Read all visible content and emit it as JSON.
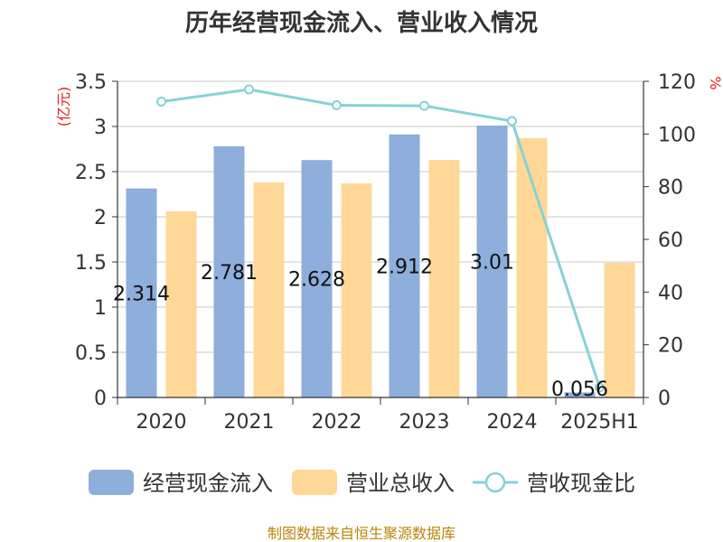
{
  "chart_data": {
    "type": "bar",
    "title": "历年经营现金流入、营业收入情况",
    "categories": [
      "2020",
      "2021",
      "2022",
      "2023",
      "2024",
      "2025H1"
    ],
    "series": [
      {
        "name": "经营现金流入",
        "type": "bar",
        "axis": "left",
        "color": "#8eaedb",
        "values": [
          2.314,
          2.781,
          2.628,
          2.912,
          3.01,
          0.056
        ],
        "labels": [
          "2.314",
          "2.781",
          "2.628",
          "2.912",
          "3.01",
          "0.056"
        ]
      },
      {
        "name": "营业总收入",
        "type": "bar",
        "axis": "left",
        "color": "#ffd898",
        "values": [
          2.06,
          2.38,
          2.37,
          2.63,
          2.87,
          1.49
        ]
      },
      {
        "name": "营收现金比",
        "type": "line",
        "axis": "right",
        "color": "#86d2d6",
        "values": [
          112.3,
          116.9,
          110.9,
          110.7,
          104.9,
          3.8
        ]
      }
    ],
    "y_left": {
      "unit": "亿元",
      "range": [
        0,
        3.5
      ],
      "ticks": [
        "0",
        "0.5",
        "1",
        "1.5",
        "2",
        "2.5",
        "3",
        "3.5"
      ]
    },
    "y_right": {
      "unit": "%",
      "range": [
        0,
        120
      ],
      "ticks": [
        "0",
        "20",
        "40",
        "60",
        "80",
        "100",
        "120"
      ]
    },
    "grid": true,
    "legend_position": "bottom",
    "source": "制图数据来自恒生聚源数据库"
  }
}
